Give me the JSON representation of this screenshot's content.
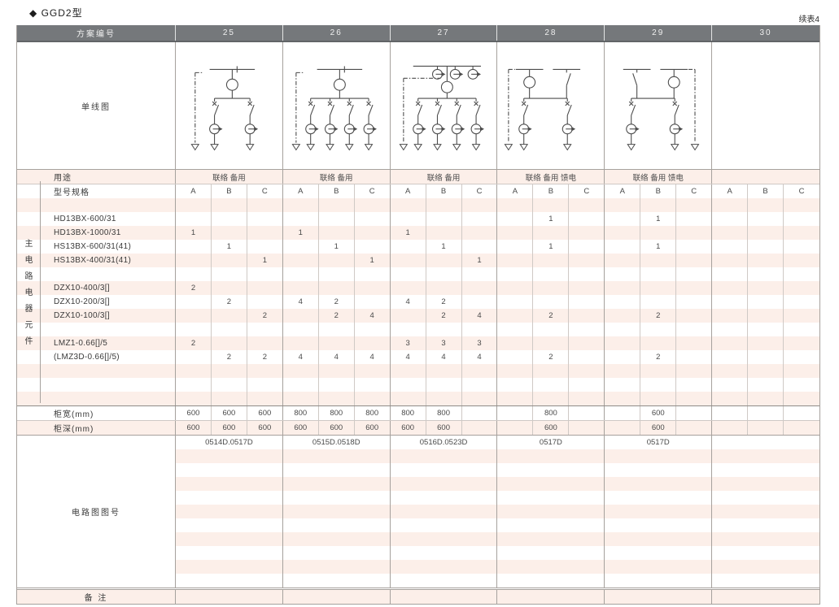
{
  "page": {
    "title": "◆ GGD2型",
    "continued": "续表4"
  },
  "colors": {
    "header_bg": "#75787b",
    "header_text": "#f0f0f0",
    "stripe_pink": "#fcefe9",
    "grid_line": "#a6a19d",
    "grid_line_light": "#cfc9c5",
    "diagram_stroke": "#4c4c4c"
  },
  "header": {
    "label": "方案编号",
    "schemes": [
      "25",
      "26",
      "27",
      "28",
      "29",
      "30"
    ]
  },
  "diagram_section": {
    "label": "单线图",
    "diagrams": [
      {
        "scheme": "25",
        "incomers": 1,
        "feeders": 2,
        "dashed_side": "left",
        "busbar_cts": 0
      },
      {
        "scheme": "26",
        "incomers": 1,
        "feeders": 4,
        "dashed_side": "left",
        "busbar_cts": 0
      },
      {
        "scheme": "27",
        "incomers": 1,
        "feeders": 4,
        "dashed_side": "left",
        "busbar_cts": 3
      },
      {
        "scheme": "28",
        "incomers": 2,
        "breaker_side": "left",
        "feeders": 2,
        "dashed_side": "left",
        "busbar_cts": 0
      },
      {
        "scheme": "29",
        "incomers": 2,
        "breaker_side": "right",
        "feeders": 2,
        "dashed_side": "right",
        "busbar_cts": 0
      },
      null
    ]
  },
  "usage_row": {
    "label": "用途",
    "values": [
      "联络 备用",
      "联络 备用",
      "联络 备用",
      "联络 备用 馈电",
      "联络 备用 馈电",
      ""
    ]
  },
  "spec_row": {
    "label": "型号规格",
    "subcols": [
      "A",
      "B",
      "C"
    ]
  },
  "side_label": "主电路电器元件",
  "component_rows": [
    {
      "label": "",
      "values": [
        "",
        "",
        "",
        "",
        "",
        "",
        "",
        "",
        "",
        "",
        "",
        "",
        "",
        "",
        "",
        "",
        "",
        ""
      ]
    },
    {
      "label": "HD13BX-600/31",
      "values": [
        "",
        "",
        "",
        "",
        "",
        "",
        "",
        "",
        "",
        "",
        "1",
        "",
        "",
        "1",
        "",
        "",
        "",
        ""
      ]
    },
    {
      "label": "HD13BX-1000/31",
      "values": [
        "1",
        "",
        "",
        "1",
        "",
        "",
        "1",
        "",
        "",
        "",
        "",
        "",
        "",
        "",
        "",
        "",
        "",
        ""
      ]
    },
    {
      "label": "HS13BX-600/31(41)",
      "values": [
        "",
        "1",
        "",
        "",
        "1",
        "",
        "",
        "1",
        "",
        "",
        "1",
        "",
        "",
        "1",
        "",
        "",
        "",
        ""
      ]
    },
    {
      "label": "HS13BX-400/31(41)",
      "values": [
        "",
        "",
        "1",
        "",
        "",
        "1",
        "",
        "",
        "1",
        "",
        "",
        "",
        "",
        "",
        "",
        "",
        "",
        ""
      ]
    },
    {
      "label": "",
      "values": [
        "",
        "",
        "",
        "",
        "",
        "",
        "",
        "",
        "",
        "",
        "",
        "",
        "",
        "",
        "",
        "",
        "",
        ""
      ]
    },
    {
      "label": "DZX10-400/3[]",
      "values": [
        "2",
        "",
        "",
        "",
        "",
        "",
        "",
        "",
        "",
        "",
        "",
        "",
        "",
        "",
        "",
        "",
        "",
        ""
      ]
    },
    {
      "label": "DZX10-200/3[]",
      "values": [
        "",
        "2",
        "",
        "4",
        "2",
        "",
        "4",
        "2",
        "",
        "",
        "",
        "",
        "",
        "",
        "",
        "",
        "",
        ""
      ]
    },
    {
      "label": "DZX10-100/3[]",
      "values": [
        "",
        "",
        "2",
        "",
        "2",
        "4",
        "",
        "2",
        "4",
        "",
        "2",
        "",
        "",
        "2",
        "",
        "",
        "",
        ""
      ]
    },
    {
      "label": "",
      "values": [
        "",
        "",
        "",
        "",
        "",
        "",
        "",
        "",
        "",
        "",
        "",
        "",
        "",
        "",
        "",
        "",
        "",
        ""
      ]
    },
    {
      "label": "LMZ1-0.66[]/5",
      "values": [
        "2",
        "",
        "",
        "",
        "",
        "",
        "3",
        "3",
        "3",
        "",
        "",
        "",
        "",
        "",
        "",
        "",
        "",
        ""
      ]
    },
    {
      "label": "(LMZ3D-0.66[]/5)",
      "values": [
        "",
        "2",
        "2",
        "4",
        "4",
        "4",
        "4",
        "4",
        "4",
        "",
        "2",
        "",
        "",
        "2",
        "",
        "",
        "",
        ""
      ]
    },
    {
      "label": "",
      "values": [
        "",
        "",
        "",
        "",
        "",
        "",
        "",
        "",
        "",
        "",
        "",
        "",
        "",
        "",
        "",
        "",
        "",
        ""
      ]
    },
    {
      "label": "",
      "values": [
        "",
        "",
        "",
        "",
        "",
        "",
        "",
        "",
        "",
        "",
        "",
        "",
        "",
        "",
        "",
        "",
        "",
        ""
      ]
    },
    {
      "label": "",
      "values": [
        "",
        "",
        "",
        "",
        "",
        "",
        "",
        "",
        "",
        "",
        "",
        "",
        "",
        "",
        "",
        "",
        "",
        ""
      ]
    }
  ],
  "width_row": {
    "label": "柜宽(mm)",
    "values": [
      "600",
      "600",
      "600",
      "800",
      "800",
      "800",
      "800",
      "800",
      "",
      "",
      "800",
      "",
      "",
      "600",
      "",
      "",
      "",
      ""
    ]
  },
  "depth_row": {
    "label": "柜深(mm)",
    "values": [
      "600",
      "600",
      "600",
      "600",
      "600",
      "600",
      "600",
      "600",
      "",
      "",
      "600",
      "",
      "",
      "600",
      "",
      "",
      "",
      ""
    ]
  },
  "drawing_section": {
    "label": "电路图图号",
    "blank_stripe_rows": 10,
    "values": [
      "0514D.0517D",
      "0515D.0518D",
      "0516D.0523D",
      "0517D",
      "0517D",
      ""
    ]
  },
  "note_row": {
    "label": "备 注"
  }
}
